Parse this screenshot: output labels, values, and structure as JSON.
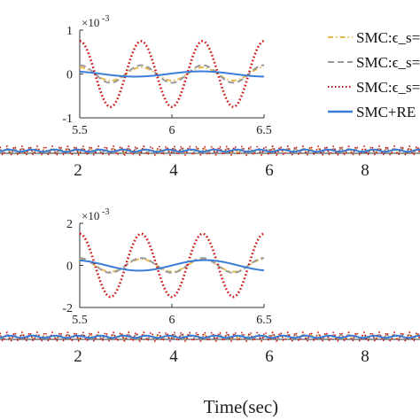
{
  "chart_data": [
    {
      "type": "line",
      "name": "upper-main",
      "xlabel": "",
      "xlim": [
        0,
        10
      ],
      "xticks": [
        2,
        4,
        6,
        8
      ],
      "tick_labels": [
        "2",
        "4",
        "6",
        "8"
      ],
      "signal": {
        "frequency_hz": 3,
        "noted": "oscillation about zero, visually small"
      }
    },
    {
      "type": "line",
      "name": "upper-inset",
      "xlim": [
        5.5,
        6.5
      ],
      "ylim": [
        -1,
        1
      ],
      "y_multiplier": "×10",
      "y_multiplier_exp": "-3",
      "xtick_labels": [
        "5.5",
        "6",
        "6.5"
      ],
      "ytick_labels": [
        "1",
        "0",
        "-1"
      ],
      "xticks": [
        5.5,
        6,
        6.5
      ],
      "yticks": [
        1,
        0,
        -1
      ],
      "series": [
        {
          "name": "SMC:ϵ_s=",
          "color": "#e8b84a",
          "style": "dashdot",
          "amplitude": 0.15,
          "frequency": 3,
          "phase": 0
        },
        {
          "name": "SMC:ϵ_s=",
          "color": "#9a9a9a",
          "style": "dashed",
          "amplitude": 0.2,
          "frequency": 3,
          "phase": 0
        },
        {
          "name": "SMC:ϵ_s=",
          "color": "#cc1111",
          "style": "dotted",
          "amplitude": 0.75,
          "frequency": 3,
          "phase": 0
        },
        {
          "name": "SMC+RE",
          "color": "#3a7dd8",
          "style": "solid",
          "amplitude": 0.06,
          "frequency": 1.4,
          "phase": 0.5
        }
      ]
    },
    {
      "type": "line",
      "name": "lower-main",
      "xlabel": "Time(sec)",
      "xlim": [
        0,
        10
      ],
      "xticks": [
        2,
        4,
        6,
        8
      ],
      "tick_labels": [
        "2",
        "4",
        "6",
        "8"
      ]
    },
    {
      "type": "line",
      "name": "lower-inset",
      "xlim": [
        5.5,
        6.5
      ],
      "ylim": [
        -2,
        2
      ],
      "y_multiplier": "×10",
      "y_multiplier_exp": "-3",
      "xtick_labels": [
        "5.5",
        "6",
        "6.5"
      ],
      "ytick_labels": [
        "2",
        "0",
        "-2"
      ],
      "xticks": [
        5.5,
        6,
        6.5
      ],
      "yticks": [
        2,
        0,
        -2
      ],
      "series": [
        {
          "name": "SMC:ϵ_s=",
          "color": "#e8b84a",
          "style": "dashdot",
          "amplitude": 0.3,
          "frequency": 3,
          "phase": 0
        },
        {
          "name": "SMC:ϵ_s=",
          "color": "#9a9a9a",
          "style": "dashed",
          "amplitude": 0.35,
          "frequency": 3,
          "phase": 0
        },
        {
          "name": "SMC:ϵ_s=",
          "color": "#cc1111",
          "style": "dotted",
          "amplitude": 1.5,
          "frequency": 3,
          "phase": 0
        },
        {
          "name": "SMC+RE",
          "color": "#3a7dd8",
          "style": "solid",
          "amplitude": 0.25,
          "frequency": 1.4,
          "phase": 0.3
        }
      ]
    }
  ],
  "legend": {
    "placement": "top-right",
    "entries": [
      {
        "label": "SMC:ϵ_s=",
        "color": "#e8b84a",
        "style": "dashdot"
      },
      {
        "label": "SMC:ϵ_s=",
        "color": "#9a9a9a",
        "style": "dashed"
      },
      {
        "label": "SMC:ϵ_s=",
        "color": "#cc1111",
        "style": "dotted"
      },
      {
        "label": "SMC+RE",
        "color": "#3a7dd8",
        "style": "solid"
      }
    ]
  }
}
